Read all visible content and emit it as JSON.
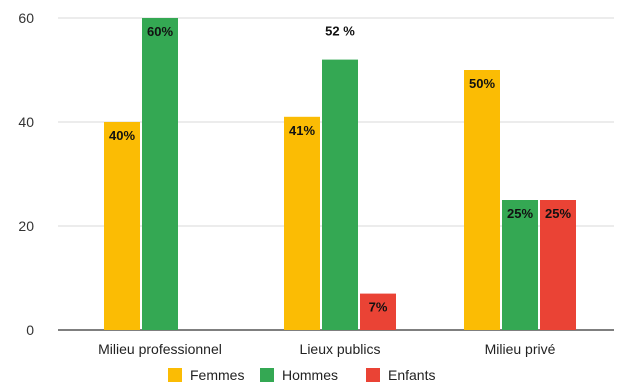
{
  "chart_data": {
    "type": "bar",
    "title": "",
    "xlabel": "",
    "ylabel": "",
    "categories": [
      "Milieu professionnel",
      "Lieux publics",
      "Milieu privé"
    ],
    "series": [
      {
        "name": "Femmes",
        "color": "#fbbc04",
        "values": [
          40,
          41,
          50
        ],
        "labels": [
          "40%",
          "41%",
          "50%"
        ]
      },
      {
        "name": "Hommes",
        "color": "#34a853",
        "values": [
          60,
          52,
          25
        ],
        "labels": [
          "60%",
          "52 %",
          "25%"
        ]
      },
      {
        "name": "Enfants",
        "color": "#ea4335",
        "values": [
          null,
          7,
          25
        ],
        "labels": [
          "",
          "7%",
          "25%"
        ]
      }
    ],
    "ylim": [
      0,
      60
    ],
    "yticks": [
      "0",
      "20",
      "40",
      "60"
    ],
    "grid": true,
    "legend_position": "bottom"
  }
}
